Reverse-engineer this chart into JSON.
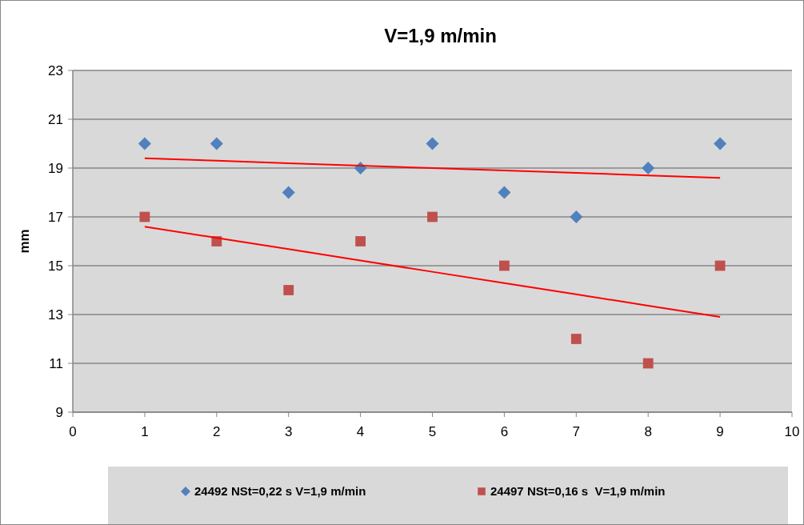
{
  "chart_data": {
    "type": "scatter",
    "title": "V=1,9 m/min",
    "ylabel": "mm",
    "x": [
      1,
      2,
      3,
      4,
      5,
      6,
      7,
      8,
      9
    ],
    "xlim": [
      0,
      10
    ],
    "xticks": [
      0,
      1,
      2,
      3,
      4,
      5,
      6,
      7,
      8,
      9,
      10
    ],
    "ylim": [
      9,
      23
    ],
    "yticks": [
      9,
      11,
      13,
      15,
      17,
      19,
      21,
      23
    ],
    "grid": "y",
    "legend": "bottom",
    "series": [
      {
        "name": "24492 NSt=0,22 s V=1,9 m/min",
        "color": "#4f81bd",
        "marker": "diamond",
        "values": [
          20,
          20,
          18,
          19,
          20,
          18,
          17,
          19,
          20
        ]
      },
      {
        "name": "24497 NSt=0,16 s  V=1,9 m/min",
        "color": "#c0504d",
        "marker": "square",
        "values": [
          17,
          16,
          14,
          16,
          17,
          15,
          12,
          11,
          15
        ]
      },
      {
        "type": "line",
        "color": "#ff0000",
        "marker": "none",
        "values": [
          19.4,
          19.3,
          19.2,
          19.1,
          19.0,
          18.9,
          18.8,
          18.7,
          18.6
        ]
      },
      {
        "type": "line",
        "color": "#ff0000",
        "marker": "none",
        "values": [
          16.6,
          16.14,
          15.68,
          15.21,
          14.75,
          14.29,
          13.83,
          13.36,
          12.9
        ]
      }
    ]
  }
}
